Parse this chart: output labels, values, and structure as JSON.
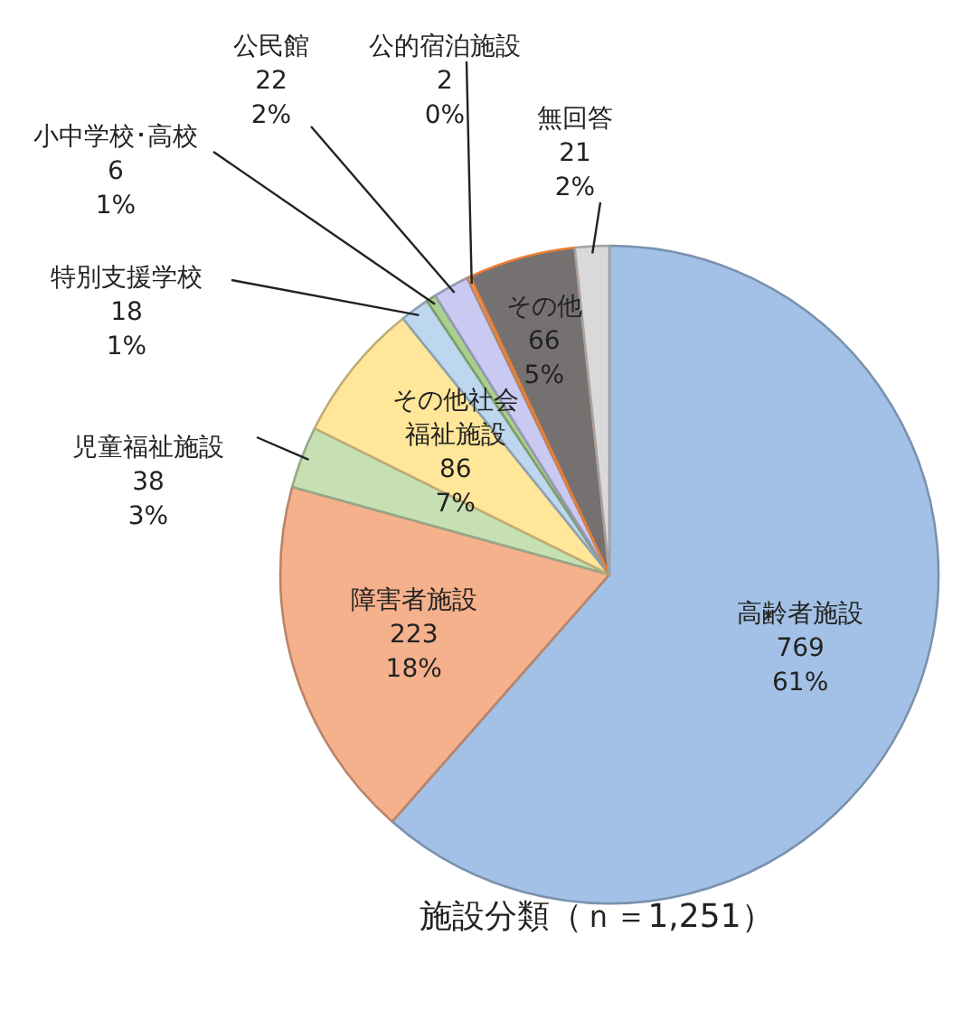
{
  "chart_data": {
    "type": "pie",
    "title": "施設分類（ｎ＝1,251）",
    "categories": [
      "高齢者施設",
      "障害者施設",
      "児童福祉施設",
      "その他社会福祉施設",
      "特別支援学校",
      "小中学校･高校",
      "公民館",
      "公的宿泊施設",
      "その他",
      "無回答"
    ],
    "values": [
      769,
      223,
      38,
      86,
      18,
      6,
      22,
      2,
      66,
      21
    ],
    "value_labels": [
      "769\n61%",
      "223\n18%",
      "38\n3%",
      "86\n7%",
      "18\n1%",
      "6\n1%",
      "22\n2%",
      "2\n0%",
      "66\n5%",
      "21\n2%"
    ],
    "colors": [
      "#a3c1e6",
      "#f5b08c",
      "#c6e0b4",
      "#ffe699",
      "#bdd7ee",
      "#a9d18e",
      "#c9c9f2",
      "#f4b183",
      "#767171",
      "#d9d9d9"
    ]
  }
}
